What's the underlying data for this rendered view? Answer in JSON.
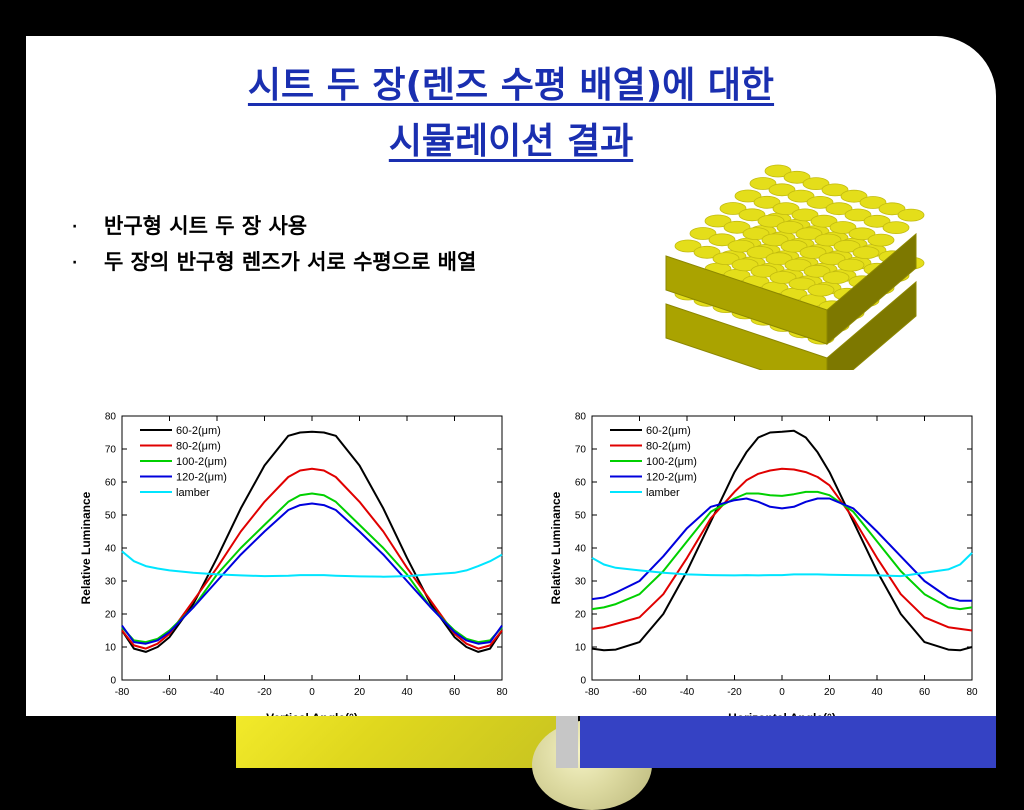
{
  "slide": {
    "title_line1": "시트 두 장(렌즈 수평 배열)에 대한",
    "title_line2": "시뮬레이션 결과",
    "bullet_char": "·",
    "bullets": [
      "반구형 시트 두 장 사용",
      "두 장의 반구형 렌즈가 서로 수평으로 배열"
    ],
    "colors": {
      "title": "#1a2fb0",
      "lens": "#e4de1a",
      "footer_blue": "#3542c4",
      "footer_yellow": "#f2ea2a"
    }
  },
  "chart_data": [
    {
      "type": "line",
      "xlabel": "Vertical Angle(°)",
      "ylabel": "Relative Luminance",
      "xlim": [
        -80,
        80
      ],
      "ylim": [
        0,
        80
      ],
      "xticks": [
        -80,
        -60,
        -40,
        -20,
        0,
        20,
        40,
        60,
        80
      ],
      "yticks": [
        0,
        10,
        20,
        30,
        40,
        50,
        60,
        70,
        80
      ],
      "legend": "top-left",
      "x": [
        -80,
        -75,
        -70,
        -65,
        -60,
        -50,
        -40,
        -30,
        -20,
        -10,
        -5,
        0,
        5,
        10,
        20,
        30,
        40,
        50,
        60,
        65,
        70,
        75,
        80
      ],
      "series": [
        {
          "name": "60-2(μm)",
          "color": "#000000",
          "values": [
            15,
            9.5,
            8.5,
            10,
            13,
            23,
            37,
            52,
            65,
            74,
            75,
            75.2,
            75,
            74,
            65,
            52,
            37,
            23,
            13,
            10,
            8.5,
            9.5,
            15
          ]
        },
        {
          "name": "80-2(μm)",
          "color": "#e00000",
          "values": [
            15,
            10.5,
            9.5,
            11,
            14,
            24,
            34,
            45,
            54,
            61.5,
            63.5,
            64,
            63.5,
            61.5,
            54,
            45,
            34,
            24,
            14,
            11,
            9.5,
            10.5,
            15
          ]
        },
        {
          "name": "100-2(μm)",
          "color": "#00d000",
          "values": [
            16,
            12,
            11.5,
            12.5,
            15,
            22,
            32,
            40,
            47,
            54,
            56,
            56.5,
            56,
            54,
            47,
            40,
            32,
            22,
            15,
            12.5,
            11.5,
            12,
            16
          ]
        },
        {
          "name": "120-2(μm)",
          "color": "#0000dd",
          "values": [
            16.5,
            11.5,
            11,
            12,
            14.5,
            22,
            30,
            38,
            45,
            51.5,
            53,
            53.5,
            53,
            51.5,
            45,
            38,
            30,
            22,
            14.5,
            12,
            11,
            11.5,
            16.5
          ]
        },
        {
          "name": "lamber",
          "color": "#00e5ff",
          "values": [
            39,
            36,
            34.5,
            33.8,
            33.2,
            32.5,
            32,
            31.7,
            31.5,
            31.6,
            31.8,
            31.8,
            31.8,
            31.6,
            31.4,
            31.3,
            31.5,
            32,
            32.5,
            33.2,
            34.5,
            36,
            38
          ]
        }
      ]
    },
    {
      "type": "line",
      "xlabel": "Horizontal Angle(°)",
      "ylabel": "Relative Luminance",
      "xlim": [
        -80,
        80
      ],
      "ylim": [
        0,
        80
      ],
      "xticks": [
        -80,
        -60,
        -40,
        -20,
        0,
        20,
        40,
        60,
        80
      ],
      "yticks": [
        0,
        10,
        20,
        30,
        40,
        50,
        60,
        70,
        80
      ],
      "legend": "top-left",
      "x": [
        -80,
        -75,
        -70,
        -60,
        -50,
        -40,
        -30,
        -20,
        -15,
        -10,
        -5,
        0,
        5,
        10,
        15,
        20,
        30,
        40,
        50,
        60,
        70,
        75,
        80
      ],
      "series": [
        {
          "name": "60-2(μm)",
          "color": "#000000",
          "values": [
            9.5,
            9,
            9.2,
            11.5,
            20,
            33,
            48,
            63,
            69,
            73.5,
            75,
            75.2,
            75.5,
            73.5,
            69,
            63,
            48,
            33,
            20,
            11.5,
            9.2,
            9,
            10
          ]
        },
        {
          "name": "80-2(μm)",
          "color": "#e00000",
          "values": [
            15.5,
            16,
            17,
            19,
            26,
            37,
            49,
            57,
            60.5,
            62.5,
            63.5,
            64,
            63.8,
            63,
            61.5,
            59,
            49,
            37,
            26,
            19,
            16,
            15.5,
            15
          ]
        },
        {
          "name": "100-2(μm)",
          "color": "#00d000",
          "values": [
            21.5,
            22,
            23,
            26,
            33,
            42,
            51,
            55,
            56.5,
            56.5,
            56,
            55.8,
            56.3,
            57,
            57,
            56,
            51,
            42,
            33,
            26,
            22,
            21.5,
            22
          ]
        },
        {
          "name": "120-2(μm)",
          "color": "#0000dd",
          "values": [
            24.5,
            25,
            26.5,
            30,
            37.5,
            46,
            52.5,
            54.5,
            55,
            54,
            52.5,
            52,
            52.5,
            54,
            55,
            55,
            52,
            45,
            37.5,
            30,
            25,
            24,
            24
          ]
        },
        {
          "name": "lamber",
          "color": "#00e5ff",
          "values": [
            37,
            35,
            34,
            33.2,
            32.5,
            32,
            31.8,
            31.7,
            31.8,
            31.7,
            31.8,
            31.8,
            32,
            32,
            32,
            31.9,
            31.8,
            31.7,
            31.5,
            32.5,
            33.5,
            35,
            38.5
          ]
        }
      ]
    }
  ]
}
